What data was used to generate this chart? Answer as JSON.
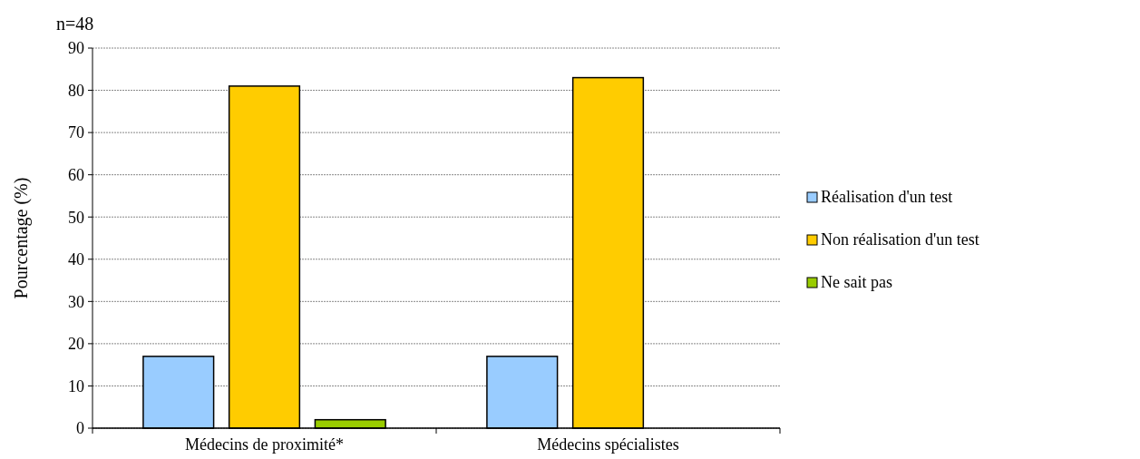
{
  "chart_data": {
    "type": "bar",
    "ylabel": "Pourcentage (%)",
    "annotations": [
      "n=48"
    ],
    "categories": [
      "Médecins de proximité*",
      "Médecins spécialistes"
    ],
    "series": [
      {
        "name": "Réalisation d'un test",
        "color": "#99ccff",
        "values": [
          17,
          17
        ]
      },
      {
        "name": "Non réalisation d'un test",
        "color": "#ffcc00",
        "values": [
          81,
          83
        ]
      },
      {
        "name": "Ne sait pas",
        "color": "#99cc00",
        "values": [
          2,
          null
        ]
      }
    ],
    "ylim": [
      0,
      90
    ],
    "yticks": [
      0,
      10,
      20,
      30,
      40,
      50,
      60,
      70,
      80,
      90
    ],
    "grid": "y",
    "legend": "right"
  }
}
